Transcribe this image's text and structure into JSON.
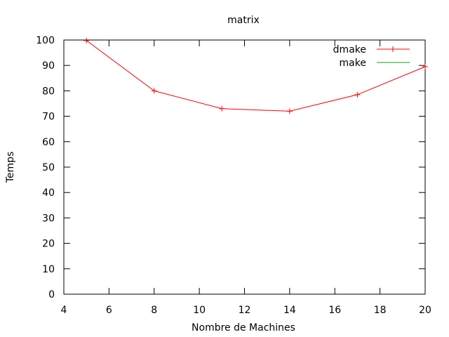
{
  "chart_data": {
    "type": "line",
    "title": "matrix",
    "xlabel": "Nombre de Machines",
    "ylabel": "Temps",
    "xlim": [
      4,
      20
    ],
    "ylim": [
      0,
      100
    ],
    "xticks": [
      4,
      6,
      8,
      10,
      12,
      14,
      16,
      18,
      20
    ],
    "yticks": [
      0,
      10,
      20,
      30,
      40,
      50,
      60,
      70,
      80,
      90,
      100
    ],
    "grid": false,
    "legend_position": "top-right",
    "series": [
      {
        "name": "dmake",
        "color": "#ff0000",
        "marker": "plus",
        "x": [
          5,
          8,
          11,
          14,
          17,
          20
        ],
        "y": [
          99.8,
          80,
          73,
          72,
          78.5,
          89.5
        ]
      },
      {
        "name": "make",
        "color": "#00aa00",
        "marker": "none",
        "x": [],
        "y": []
      }
    ]
  }
}
